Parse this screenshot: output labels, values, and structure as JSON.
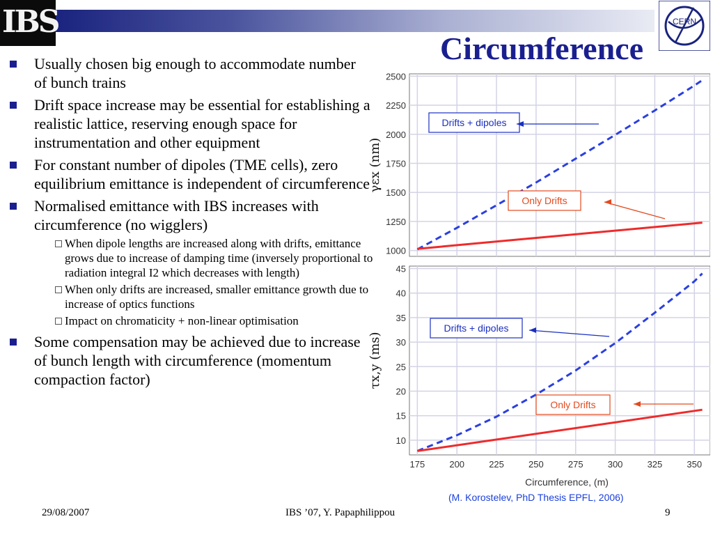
{
  "header": {
    "logo_text": "IBS",
    "right_logo_text": "CERN",
    "title": "Circumference"
  },
  "bullets": [
    {
      "text": "Usually chosen big enough to accommodate number of bunch trains"
    },
    {
      "text": "Drift space increase may be essential for establishing a realistic lattice, reserving enough space for instrumentation and other equipment"
    },
    {
      "text": "For constant number of dipoles (TME cells), zero equilibrium emittance is independent of circumference"
    },
    {
      "text": "Normalised emittance with IBS increases with circumference (no wigglers)",
      "sub": [
        "When dipole lengths are increased along with drifts, emittance grows due to increase of damping time (inversely proportional to radiation integral I2 which decreases with length)",
        "When only drifts are increased, smaller emittance growth due to increase of optics functions",
        "Impact on chromaticity + non-linear optimisation"
      ]
    },
    {
      "text": "Some compensation may be achieved due to increase of bunch length with circumference (momentum compaction factor)"
    }
  ],
  "footer": {
    "date": "29/08/2007",
    "center": "IBS ’07,  Y. Papaphilippou",
    "page": "9"
  },
  "citation": "(M. Korostelev, PhD Thesis EPFL, 2006)",
  "chart_data": [
    {
      "type": "line",
      "ylabel": "γεx (nm)",
      "xlim": [
        170,
        360
      ],
      "ylim": [
        950,
        2520
      ],
      "yticks": [
        1000,
        1250,
        1500,
        1750,
        2000,
        2250,
        2500
      ],
      "series": [
        {
          "name": "Drifts + dipoles",
          "style": "dashed",
          "color": "#2a3fe0",
          "x": [
            175,
            200,
            225,
            250,
            275,
            300,
            325,
            350,
            355
          ],
          "y": [
            1010,
            1195,
            1390,
            1585,
            1790,
            1995,
            2205,
            2420,
            2465
          ]
        },
        {
          "name": "Only Drifts",
          "style": "solid",
          "color": "#ee2b2b",
          "x": [
            175,
            355
          ],
          "y": [
            1015,
            1240
          ]
        }
      ],
      "annotations": [
        "Drifts + dipoles",
        "Only Drifts"
      ]
    },
    {
      "type": "line",
      "xlabel": "Circumference, (m)",
      "ylabel": "τx,y (ms)",
      "xlim": [
        170,
        360
      ],
      "ylim": [
        7,
        45.5
      ],
      "xticks": [
        175,
        200,
        225,
        250,
        275,
        300,
        325,
        350
      ],
      "yticks": [
        10,
        15,
        20,
        25,
        30,
        35,
        40,
        45
      ],
      "series": [
        {
          "name": "Drifts + dipoles",
          "style": "dashed",
          "color": "#2a3fe0",
          "x": [
            175,
            200,
            225,
            250,
            275,
            300,
            325,
            350,
            355
          ],
          "y": [
            7.8,
            11.0,
            14.8,
            19.3,
            24.2,
            29.8,
            36.0,
            42.4,
            44.0
          ]
        },
        {
          "name": "Only Drifts",
          "style": "solid",
          "color": "#ee2b2b",
          "x": [
            175,
            355
          ],
          "y": [
            7.8,
            16.2
          ]
        }
      ],
      "annotations": [
        "Drifts + dipoles",
        "Only Drifts"
      ]
    }
  ]
}
